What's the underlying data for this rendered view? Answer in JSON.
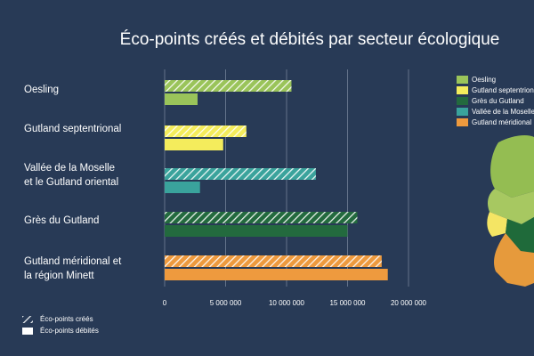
{
  "chart_data": {
    "type": "bar",
    "orientation": "horizontal",
    "title": "Éco-points créés et débités par secteur écologique",
    "categories": [
      "Oesling",
      "Gutland septentrional",
      "Vallée de la Moselle et le Gutland oriental",
      "Grès du Gutland",
      "Gutland méridional et la région Minett"
    ],
    "category_lines": [
      [
        "Oesling"
      ],
      [
        "Gutland septentrional"
      ],
      [
        "Vallée de la Moselle",
        "et le Gutland oriental"
      ],
      [
        "Grès du Gutland"
      ],
      [
        "Gutland méridional et",
        "la région Minett"
      ]
    ],
    "colors": [
      "#9ac45a",
      "#f4ec5c",
      "#3aa39c",
      "#236a3e",
      "#ee9a3e"
    ],
    "series": [
      {
        "name": "Éco-points créés",
        "values": [
          10400000,
          6700000,
          12400000,
          15800000,
          17800000
        ]
      },
      {
        "name": "Éco-points débités",
        "values": [
          2700000,
          4800000,
          2900000,
          15000000,
          18300000
        ]
      }
    ],
    "bar_kinds": [
      "Éco-points créés",
      "Éco-points débités"
    ],
    "xlim": [
      0,
      20000000
    ],
    "x_ticks": [
      0,
      5000000,
      10000000,
      15000000,
      20000000
    ],
    "x_tick_labels": [
      "0",
      "5 000 000",
      "10 000 000",
      "15 000 000",
      "20 000 000"
    ],
    "grid": true,
    "legend": [
      {
        "label": "Oesling",
        "color": "#9ac45a"
      },
      {
        "label": "Gutland septentrional",
        "color": "#f4ec5c"
      },
      {
        "label": "Grès du Gutland",
        "color": "#236a3e"
      },
      {
        "label": "Vallée de la Moselle",
        "color": "#3aa39c"
      },
      {
        "label": "Gutland méridional",
        "color": "#ee9a3e"
      }
    ],
    "legend_position": "right"
  }
}
